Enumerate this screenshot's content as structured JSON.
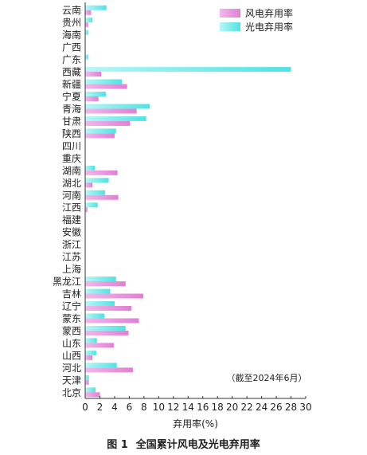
{
  "chart_data": {
    "type": "bar",
    "orientation": "horizontal",
    "categories": [
      "云南",
      "贵州",
      "海南",
      "广西",
      "广东",
      "西藏",
      "新疆",
      "宁夏",
      "青海",
      "甘肃",
      "陕西",
      "四川",
      "重庆",
      "湖南",
      "湖北",
      "河南",
      "江西",
      "福建",
      "安徽",
      "浙江",
      "江苏",
      "上海",
      "黑龙江",
      "吉林",
      "辽宁",
      "蒙东",
      "蒙西",
      "山东",
      "山西",
      "河北",
      "天津",
      "北京"
    ],
    "series": [
      {
        "name": "风电弃用率",
        "color": "#e58ad8",
        "values": [
          0.8,
          0.4,
          0,
          0,
          0,
          2.2,
          5.7,
          1.8,
          7.0,
          6.1,
          4.0,
          0,
          0,
          4.4,
          1.0,
          4.5,
          0.3,
          0,
          0,
          0,
          0,
          0,
          5.5,
          7.9,
          6.3,
          7.3,
          5.9,
          3.9,
          1.0,
          6.5,
          0.5,
          2.0
        ]
      },
      {
        "name": "光电弃用率",
        "color": "#5ee8e8",
        "values": [
          2.9,
          1.0,
          0.4,
          0,
          0.4,
          28.0,
          5.0,
          2.8,
          8.8,
          8.3,
          4.2,
          0,
          0,
          1.3,
          3.2,
          2.7,
          1.7,
          0,
          0,
          0,
          0,
          0,
          4.2,
          3.4,
          4.0,
          2.6,
          5.5,
          1.6,
          1.5,
          4.3,
          0.5,
          1.4
        ]
      }
    ],
    "xlabel": "弃用率(%)",
    "xlim": [
      0,
      30
    ],
    "xticks": [
      0,
      2,
      4,
      6,
      8,
      10,
      12,
      14,
      16,
      18,
      20,
      22,
      24,
      26,
      28,
      30
    ],
    "legend": "top-right",
    "annotation": "（截至2024年6月）",
    "grid": false
  },
  "caption": {
    "number": "图 1",
    "text": "全国累计风电及光电弃用率"
  }
}
